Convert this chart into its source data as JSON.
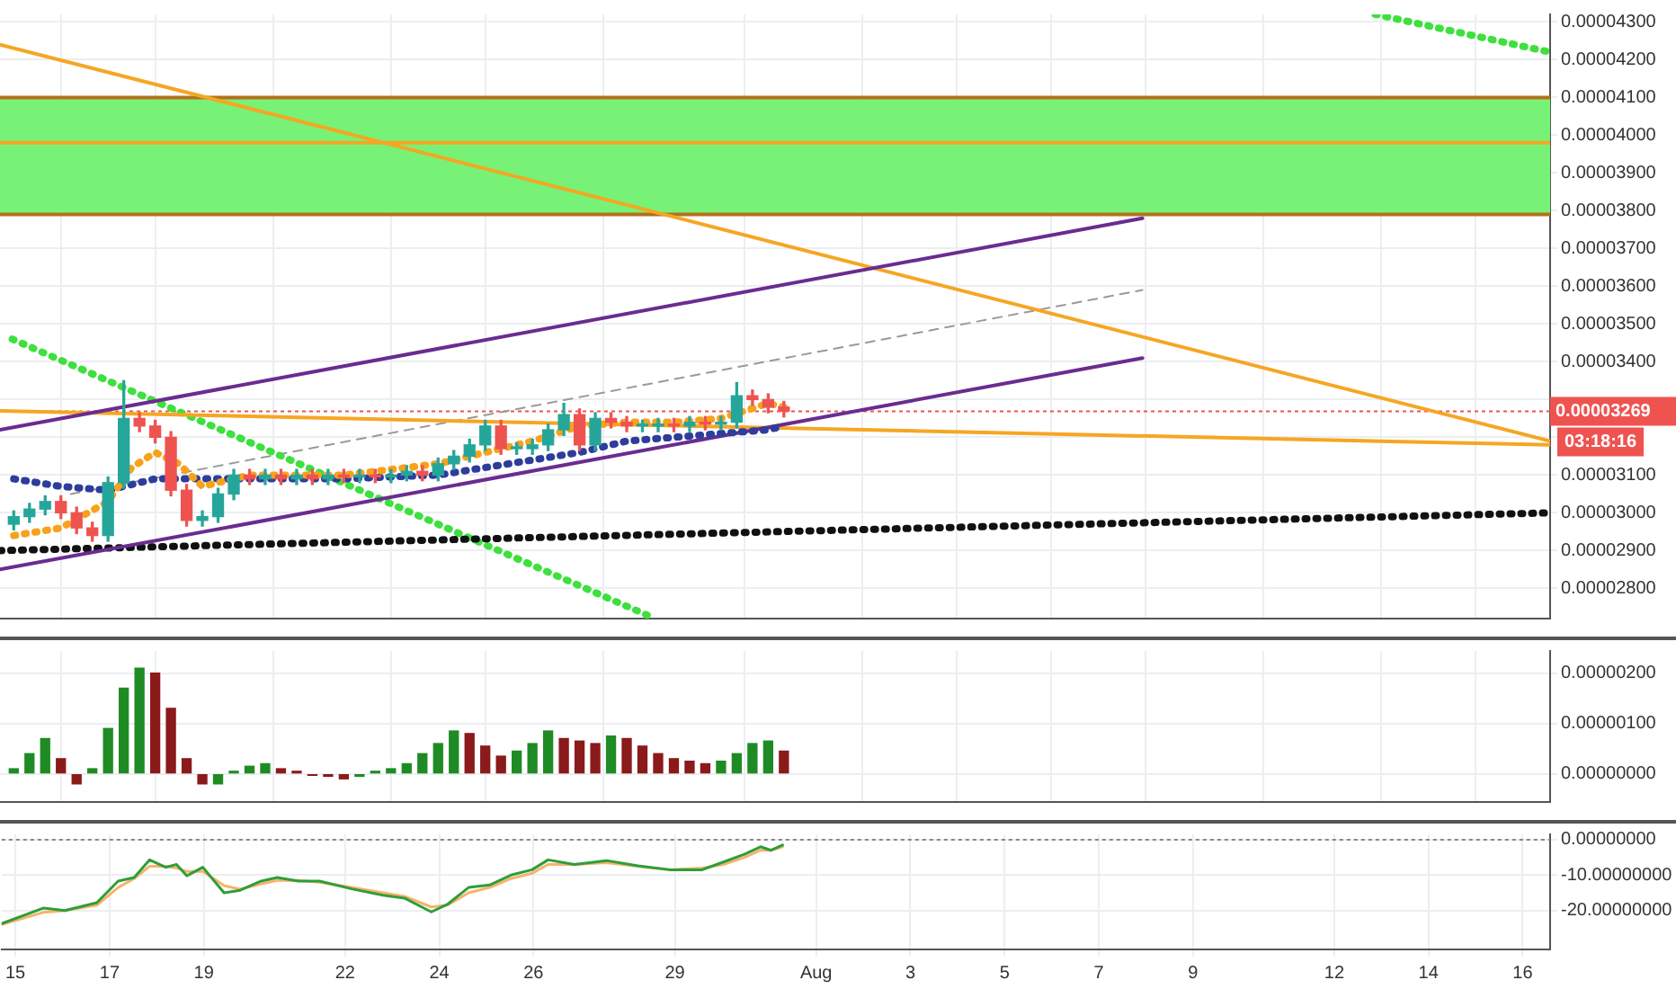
{
  "chart_data": [
    {
      "type": "candlestick",
      "x": [
        "--07-15T00:00",
        "--07-15T08:00",
        "--07-15T16:00",
        "--07-16T00:00",
        "--07-16T08:00",
        "--07-16T16:00",
        "--07-17T00:00",
        "--07-17T08:00",
        "--07-17T16:00",
        "--07-18T00:00",
        "--07-18T08:00",
        "--07-18T16:00",
        "--07-19T00:00",
        "--07-19T08:00",
        "--07-19T16:00",
        "--07-20T00:00",
        "--07-20T08:00",
        "--07-20T16:00",
        "--07-21T00:00",
        "--07-21T08:00",
        "--07-21T16:00",
        "--07-22T00:00",
        "--07-22T08:00",
        "--07-22T16:00",
        "--07-23T00:00",
        "--07-23T08:00",
        "--07-23T16:00",
        "--07-24T00:00",
        "--07-24T08:00",
        "--07-24T16:00",
        "--07-25T00:00",
        "--07-25T08:00",
        "--07-25T16:00",
        "--07-26T00:00",
        "--07-26T08:00",
        "--07-26T16:00",
        "--07-27T00:00",
        "--07-27T08:00",
        "--07-27T16:00",
        "--07-28T00:00",
        "--07-28T08:00",
        "--07-28T16:00",
        "--07-29T00:00",
        "--07-29T08:00",
        "--07-29T16:00",
        "--07-30T00:00",
        "--07-30T08:00",
        "--07-30T16:00",
        "--07-31T00:00",
        "--07-31T08:00"
      ],
      "ohlc": [
        [
          2.97e-05,
          3.005e-05,
          2.955e-05,
          2.99e-05
        ],
        [
          2.99e-05,
          3.025e-05,
          2.975e-05,
          3.01e-05
        ],
        [
          3.01e-05,
          3.045e-05,
          2.995e-05,
          3.03e-05
        ],
        [
          3.03e-05,
          3.045e-05,
          2.985e-05,
          3e-05
        ],
        [
          3e-05,
          3.015e-05,
          2.945e-05,
          2.96e-05
        ],
        [
          2.96e-05,
          2.975e-05,
          2.925e-05,
          2.94e-05
        ],
        [
          2.94e-05,
          3.095e-05,
          2.925e-05,
          3.08e-05
        ],
        [
          3.08e-05,
          3.35e-05,
          3.065e-05,
          3.25e-05
        ],
        [
          3.25e-05,
          3.265e-05,
          3.215e-05,
          3.23e-05
        ],
        [
          3.23e-05,
          3.245e-05,
          3.185e-05,
          3.2e-05
        ],
        [
          3.2e-05,
          3.215e-05,
          3.045e-05,
          3.06e-05
        ],
        [
          3.06e-05,
          3.075e-05,
          2.965e-05,
          2.98e-05
        ],
        [
          2.98e-05,
          3.005e-05,
          2.965e-05,
          2.99e-05
        ],
        [
          2.99e-05,
          3.065e-05,
          2.975e-05,
          3.05e-05
        ],
        [
          3.05e-05,
          3.115e-05,
          3.035e-05,
          3.1e-05
        ],
        [
          3.1e-05,
          3.115e-05,
          3.075e-05,
          3.09e-05
        ],
        [
          3.09e-05,
          3.115e-05,
          3.075e-05,
          3.1e-05
        ],
        [
          3.1e-05,
          3.115e-05,
          3.075e-05,
          3.09e-05
        ],
        [
          3.09e-05,
          3.115e-05,
          3.075e-05,
          3.1e-05
        ],
        [
          3.1e-05,
          3.115e-05,
          3.075e-05,
          3.09e-05
        ],
        [
          3.09e-05,
          3.115e-05,
          3.075e-05,
          3.1e-05
        ],
        [
          3.1e-05,
          3.115e-05,
          3.08e-05,
          3.095e-05
        ],
        [
          3.095e-05,
          3.115e-05,
          3.08e-05,
          3.1e-05
        ],
        [
          3.1e-05,
          3.115e-05,
          3.08e-05,
          3.095e-05
        ],
        [
          3.095e-05,
          3.115e-05,
          3.08e-05,
          3.1e-05
        ],
        [
          3.1e-05,
          3.125e-05,
          3.085e-05,
          3.11e-05
        ],
        [
          3.11e-05,
          3.125e-05,
          3.085e-05,
          3.1e-05
        ],
        [
          3.1e-05,
          3.145e-05,
          3.085e-05,
          3.13e-05
        ],
        [
          3.13e-05,
          3.165e-05,
          3.115e-05,
          3.15e-05
        ],
        [
          3.15e-05,
          3.195e-05,
          3.135e-05,
          3.18e-05
        ],
        [
          3.18e-05,
          3.245e-05,
          3.165e-05,
          3.23e-05
        ],
        [
          3.23e-05,
          3.245e-05,
          3.155e-05,
          3.17e-05
        ],
        [
          3.17e-05,
          3.185e-05,
          3.155e-05,
          3.17e-05
        ],
        [
          3.17e-05,
          3.195e-05,
          3.155e-05,
          3.18e-05
        ],
        [
          3.18e-05,
          3.235e-05,
          3.165e-05,
          3.22e-05
        ],
        [
          3.22e-05,
          3.29e-05,
          3.205e-05,
          3.26e-05
        ],
        [
          3.26e-05,
          3.275e-05,
          3.165e-05,
          3.18e-05
        ],
        [
          3.18e-05,
          3.265e-05,
          3.165e-05,
          3.25e-05
        ],
        [
          3.25e-05,
          3.265e-05,
          3.225e-05,
          3.24e-05
        ],
        [
          3.24e-05,
          3.255e-05,
          3.215e-05,
          3.23e-05
        ],
        [
          3.23e-05,
          3.245e-05,
          3.215e-05,
          3.23e-05
        ],
        [
          3.23e-05,
          3.25e-05,
          3.215e-05,
          3.235e-05
        ],
        [
          3.235e-05,
          3.25e-05,
          3.215e-05,
          3.23e-05
        ],
        [
          3.23e-05,
          3.255e-05,
          3.215e-05,
          3.24e-05
        ],
        [
          3.24e-05,
          3.255e-05,
          3.22e-05,
          3.235e-05
        ],
        [
          3.235e-05,
          3.255e-05,
          3.22e-05,
          3.24e-05
        ],
        [
          3.24e-05,
          3.345e-05,
          3.225e-05,
          3.31e-05
        ],
        [
          3.31e-05,
          3.325e-05,
          3.285e-05,
          3.3e-05
        ],
        [
          3.3e-05,
          3.315e-05,
          3.265e-05,
          3.28e-05
        ],
        [
          3.28e-05,
          3.295e-05,
          3.254e-05,
          3.269e-05
        ]
      ],
      "series": [
        {
          "type": "line",
          "color": "#f7a21b",
          "line_style": "dotted",
          "x": [
            "--07-15",
            "--07-16",
            "--07-17",
            "--07-17T12:00",
            "--07-18",
            "--07-18T12:00",
            "--07-19",
            "--07-20",
            "--07-22",
            "--07-24",
            "--07-25",
            "--07-26",
            "--07-27",
            "--07-28",
            "--07-29",
            "--07-30",
            "--07-31",
            "--07-31T08:00"
          ],
          "values": [
            2.94e-05,
            2.96e-05,
            3.03e-05,
            3.12e-05,
            3.16e-05,
            3.13e-05,
            3.07e-05,
            3.1e-05,
            3.1e-05,
            3.13e-05,
            3.16e-05,
            3.19e-05,
            3.23e-05,
            3.24e-05,
            3.24e-05,
            3.25e-05,
            3.29e-05,
            3.28e-05
          ]
        },
        {
          "type": "line",
          "color": "#2e3d9c",
          "line_style": "dotted",
          "x": [
            "--07-15",
            "--07-16",
            "--07-17",
            "--07-18",
            "--07-19",
            "--07-20",
            "--07-22",
            "--07-24",
            "--07-25",
            "--07-26",
            "--07-27",
            "--07-28",
            "--07-29",
            "--07-30",
            "--07-31",
            "--07-31T08:00"
          ],
          "values": [
            3.09e-05,
            3.07e-05,
            3.06e-05,
            3.09e-05,
            3.09e-05,
            3.09e-05,
            3.09e-05,
            3.1e-05,
            3.12e-05,
            3.14e-05,
            3.16e-05,
            3.19e-05,
            3.2e-05,
            3.21e-05,
            3.22e-05,
            3.23e-05
          ]
        },
        {
          "type": "line",
          "color": "#6a2c91",
          "line_style": "solid",
          "x": [
            "--07-14T17:00",
            "--08-07T22:30"
          ],
          "values": [
            3.22e-05,
            3.78e-05
          ]
        },
        {
          "type": "line",
          "color": "#6a2c91",
          "line_style": "solid",
          "x": [
            "--07-14T17:00",
            "--08-07T22:30"
          ],
          "values": [
            2.85e-05,
            3.41e-05
          ]
        },
        {
          "type": "line",
          "color": "#f5a623",
          "line_style": "solid",
          "x": [
            "--07-14T17:00",
            "--08-16T14:00"
          ],
          "values": [
            4.24e-05,
            3.19e-05
          ]
        },
        {
          "type": "line",
          "color": "#f5a623",
          "line_style": "solid",
          "x": [
            "--07-14T17:00",
            "--08-16T14:00"
          ],
          "values": [
            3.27e-05,
            3.18e-05
          ]
        },
        {
          "type": "line",
          "color": "#111111",
          "line_style": "dotted",
          "x": [
            "--07-14T17:00",
            "--08-16T14:00"
          ],
          "values": [
            2.9e-05,
            3e-05
          ]
        },
        {
          "type": "line",
          "color": "#3ee03e",
          "line_style": "dotted",
          "x": [
            "--07-14T23:15",
            "--07-28T14:25"
          ],
          "values": [
            3.46e-05,
            2.72e-05
          ]
        },
        {
          "type": "line",
          "color": "#3ee03e",
          "line_style": "dotted",
          "x": [
            "--08-12T21:00",
            "--08-16T14:00"
          ],
          "values": [
            4.32e-05,
            4.22e-05
          ]
        },
        {
          "type": "line",
          "color": "#9a9a9a",
          "line_style": "dashed",
          "x": [
            "--07-16T05:00",
            "--08-07T22:30"
          ],
          "values": [
            3.05e-05,
            3.59e-05
          ]
        }
      ],
      "bands": [
        {
          "axis": "y",
          "from": 3.79e-05,
          "to": 4.1e-05,
          "color": "#77f277"
        }
      ],
      "ref_lines": [
        {
          "axis": "y",
          "value": 4.1e-05,
          "color": "#b5701a",
          "line_style": "solid"
        },
        {
          "axis": "y",
          "value": 3.79e-05,
          "color": "#b5701a",
          "line_style": "solid"
        },
        {
          "axis": "y",
          "value": 3.98e-05,
          "color": "#f5a623",
          "line_style": "solid"
        },
        {
          "axis": "y",
          "value": 3.269e-05,
          "label": "0.00003269",
          "color": "#ef5350",
          "line_style": "dotted"
        }
      ],
      "annotations": [
        "03:18:16"
      ],
      "xlim": [
        "--07-14T17:00",
        "--08-16T14:00"
      ],
      "xticks": [
        {
          "value": "--07-15",
          "label": "15"
        },
        {
          "value": "--07-17",
          "label": "17"
        },
        {
          "value": "--07-19",
          "label": "19"
        },
        {
          "value": "--07-22",
          "label": "22"
        },
        {
          "value": "--07-24",
          "label": "24"
        },
        {
          "value": "--07-26",
          "label": "26"
        },
        {
          "value": "--07-29",
          "label": "29"
        },
        {
          "value": "--08-01",
          "label": "Aug"
        },
        {
          "value": "--08-03",
          "label": "3"
        },
        {
          "value": "--08-05",
          "label": "5"
        },
        {
          "value": "--08-07",
          "label": "7"
        },
        {
          "value": "--08-09",
          "label": "9"
        },
        {
          "value": "--08-12",
          "label": "12"
        },
        {
          "value": "--08-14",
          "label": "14"
        },
        {
          "value": "--08-16",
          "label": "16"
        }
      ],
      "ylim": [
        2.72e-05,
        4.32e-05
      ],
      "yticks": [
        {
          "value": 2.8e-05,
          "label": "0.00002800"
        },
        {
          "value": 2.9e-05,
          "label": "0.00002900"
        },
        {
          "value": 3e-05,
          "label": "0.00003000"
        },
        {
          "value": 3.1e-05,
          "label": "0.00003100"
        },
        {
          "value": 3.2e-05,
          "label": null
        },
        {
          "value": 3.3e-05,
          "label": null
        },
        {
          "value": 3.4e-05,
          "label": "0.00003400"
        },
        {
          "value": 3.5e-05,
          "label": "0.00003500"
        },
        {
          "value": 3.6e-05,
          "label": "0.00003600"
        },
        {
          "value": 3.7e-05,
          "label": "0.00003700"
        },
        {
          "value": 3.8e-05,
          "label": "0.00003800"
        },
        {
          "value": 3.9e-05,
          "label": "0.00003900"
        },
        {
          "value": 4e-05,
          "label": "0.00004000"
        },
        {
          "value": 4.1e-05,
          "label": "0.00004100"
        },
        {
          "value": 4.2e-05,
          "label": "0.00004200"
        },
        {
          "value": 4.3e-05,
          "label": "0.00004300"
        }
      ],
      "grid": true,
      "legend": false,
      "tick_labels": "y"
    },
    {
      "type": "bar",
      "x": [
        "--07-15T00:00",
        "--07-15T08:00",
        "--07-15T16:00",
        "--07-16T00:00",
        "--07-16T08:00",
        "--07-16T16:00",
        "--07-17T00:00",
        "--07-17T08:00",
        "--07-17T16:00",
        "--07-18T00:00",
        "--07-18T08:00",
        "--07-18T16:00",
        "--07-19T00:00",
        "--07-19T08:00",
        "--07-19T16:00",
        "--07-20T00:00",
        "--07-20T08:00",
        "--07-20T16:00",
        "--07-21T00:00",
        "--07-21T08:00",
        "--07-21T16:00",
        "--07-22T00:00",
        "--07-22T08:00",
        "--07-22T16:00",
        "--07-23T00:00",
        "--07-23T08:00",
        "--07-23T16:00",
        "--07-24T00:00",
        "--07-24T08:00",
        "--07-24T16:00",
        "--07-25T00:00",
        "--07-25T08:00",
        "--07-25T16:00",
        "--07-26T00:00",
        "--07-26T08:00",
        "--07-26T16:00",
        "--07-27T00:00",
        "--07-27T08:00",
        "--07-27T16:00",
        "--07-28T00:00",
        "--07-28T08:00",
        "--07-28T16:00",
        "--07-29T00:00",
        "--07-29T08:00",
        "--07-29T16:00",
        "--07-30T00:00",
        "--07-30T08:00",
        "--07-30T16:00",
        "--07-31T00:00",
        "--07-31T08:00"
      ],
      "values": [
        1e-07,
        4e-07,
        7e-07,
        3e-07,
        -2e-07,
        1e-07,
        9e-07,
        1.7e-06,
        2.1e-06,
        2e-06,
        1.3e-06,
        3e-07,
        -2e-07,
        -2e-07,
        5e-08,
        1.5e-07,
        2e-07,
        1e-07,
        5e-08,
        -3e-08,
        -5e-08,
        -1e-07,
        -5e-08,
        5e-08,
        1e-07,
        2e-07,
        4e-07,
        6e-07,
        8.5e-07,
        8e-07,
        5.5e-07,
        3.5e-07,
        4.5e-07,
        6e-07,
        8.5e-07,
        7e-07,
        6.5e-07,
        6e-07,
        7.5e-07,
        7e-07,
        5.5e-07,
        4e-07,
        3e-07,
        2.5e-07,
        2e-07,
        2.5e-07,
        4e-07,
        6e-07,
        6.5e-07,
        4.5e-07
      ],
      "colors": [
        "#1f8b24",
        "#1f8b24",
        "#1f8b24",
        "#8b1a1a",
        "#8b1a1a",
        "#1f8b24",
        "#1f8b24",
        "#1f8b24",
        "#1f8b24",
        "#8b1a1a",
        "#8b1a1a",
        "#8b1a1a",
        "#8b1a1a",
        "#1f8b24",
        "#1f8b24",
        "#1f8b24",
        "#1f8b24",
        "#8b1a1a",
        "#8b1a1a",
        "#8b1a1a",
        "#8b1a1a",
        "#8b1a1a",
        "#1f8b24",
        "#1f8b24",
        "#1f8b24",
        "#1f8b24",
        "#1f8b24",
        "#1f8b24",
        "#1f8b24",
        "#8b1a1a",
        "#8b1a1a",
        "#8b1a1a",
        "#1f8b24",
        "#1f8b24",
        "#1f8b24",
        "#8b1a1a",
        "#8b1a1a",
        "#8b1a1a",
        "#1f8b24",
        "#8b1a1a",
        "#8b1a1a",
        "#8b1a1a",
        "#8b1a1a",
        "#8b1a1a",
        "#8b1a1a",
        "#1f8b24",
        "#1f8b24",
        "#1f8b24",
        "#1f8b24",
        "#8b1a1a"
      ],
      "xlim": [
        "--07-14T17:00",
        "--08-16T14:00"
      ],
      "xticks": [
        {
          "value": "--07-15",
          "label": "15"
        },
        {
          "value": "--07-17",
          "label": "17"
        },
        {
          "value": "--07-19",
          "label": "19"
        },
        {
          "value": "--07-22",
          "label": "22"
        },
        {
          "value": "--07-24",
          "label": "24"
        },
        {
          "value": "--07-26",
          "label": "26"
        },
        {
          "value": "--07-29",
          "label": "29"
        },
        {
          "value": "--08-01",
          "label": "Aug"
        },
        {
          "value": "--08-03",
          "label": "3"
        },
        {
          "value": "--08-05",
          "label": "5"
        },
        {
          "value": "--08-07",
          "label": "7"
        },
        {
          "value": "--08-09",
          "label": "9"
        },
        {
          "value": "--08-12",
          "label": "12"
        },
        {
          "value": "--08-14",
          "label": "14"
        },
        {
          "value": "--08-16",
          "label": "16"
        }
      ],
      "ylim": [
        -5.6e-07,
        2.44e-06
      ],
      "yticks": [
        {
          "value": 0,
          "label": "0.00000000"
        },
        {
          "value": 1e-06,
          "label": "0.00000100"
        },
        {
          "value": 2e-06,
          "label": "0.00000200"
        }
      ],
      "grid": true,
      "legend": false,
      "tick_labels": "y"
    },
    {
      "type": "line",
      "series": [
        {
          "color": "#2e9e3a",
          "x": [
            "--07-14T17:00",
            "--07-15T14:25",
            "--07-16T01:10",
            "--07-16T17:30",
            "--07-17T04:20",
            "--07-17T12:30",
            "--07-17T20:25",
            "--07-18T04:35",
            "--07-18T10:05",
            "--07-18T15:20",
            "--07-18T23:30",
            "--07-19T10:20",
            "--07-19T18:30",
            "--07-20T05:15",
            "--07-20T13:25",
            "--07-21T00:15",
            "--07-21T11:00",
            "--07-22T03:20",
            "--07-22T19:25",
            "--07-23T06:15",
            "--07-23T19:55",
            "--07-24T04:05",
            "--07-24T14:55",
            "--07-25T01:40",
            "--07-25T12:30",
            "--07-25T23:15",
            "--07-26T07:25",
            "--07-26T20:50",
            "--07-27T13:10",
            "--07-28T05:15",
            "--07-28T21:35",
            "--07-29T13:55",
            "--07-30T00:45",
            "--07-30T11:30",
            "--07-30T19:40",
            "--07-31T01:00",
            "--07-31T06:55"
          ],
          "values": [
            -23.7,
            -19.3,
            -20,
            -17.8,
            -11.7,
            -10.7,
            -5.7,
            -7.8,
            -7,
            -10.2,
            -7.8,
            -15,
            -14.3,
            -11.7,
            -10.7,
            -11.7,
            -11.7,
            -13.9,
            -15.7,
            -16.5,
            -20.4,
            -18.3,
            -13.5,
            -12.8,
            -10,
            -8.5,
            -5.7,
            -7,
            -5.9,
            -7.4,
            -8.5,
            -8.5,
            -6.3,
            -4.1,
            -2,
            -3,
            -1.5
          ]
        },
        {
          "color": "#f7b36b",
          "x": [
            "--07-14T17:00",
            "--07-15T14:25",
            "--07-16T01:10",
            "--07-16T17:30",
            "--07-17T04:20",
            "--07-17T12:30",
            "--07-17T20:25",
            "--07-18T04:35",
            "--07-18T10:05",
            "--07-18T15:20",
            "--07-18T23:30",
            "--07-19T10:20",
            "--07-19T18:30",
            "--07-20T05:15",
            "--07-20T13:25",
            "--07-21T00:15",
            "--07-21T11:00",
            "--07-22T03:20",
            "--07-22T19:25",
            "--07-23T06:15",
            "--07-23T19:55",
            "--07-24T04:05",
            "--07-24T14:55",
            "--07-25T01:40",
            "--07-25T12:30",
            "--07-25T23:15",
            "--07-26T07:25",
            "--07-26T20:50",
            "--07-27T13:10",
            "--07-28T05:15",
            "--07-28T21:35",
            "--07-29T13:55",
            "--07-30T00:45",
            "--07-30T11:30",
            "--07-30T19:40",
            "--07-31T01:00",
            "--07-31T06:55"
          ],
          "values": [
            -24,
            -20.5,
            -20,
            -18.5,
            -13.5,
            -11,
            -7.5,
            -7.5,
            -8,
            -9,
            -9,
            -13,
            -14,
            -12.5,
            -11.5,
            -11.5,
            -12,
            -13.5,
            -15,
            -16,
            -19,
            -18.5,
            -15,
            -13.5,
            -11,
            -9.5,
            -7,
            -7,
            -6.5,
            -7.5,
            -8.5,
            -8,
            -7,
            -5,
            -3,
            -3,
            -2
          ]
        }
      ],
      "ref_lines": [
        {
          "axis": "y",
          "value": 0,
          "color": "#888888",
          "line_style": "dotted"
        }
      ],
      "xlim": [
        "--07-14T17:00",
        "--08-16T14:00"
      ],
      "xticks": [
        {
          "value": "--07-15",
          "label": "15"
        },
        {
          "value": "--07-17",
          "label": "17"
        },
        {
          "value": "--07-19",
          "label": "19"
        },
        {
          "value": "--07-22",
          "label": "22"
        },
        {
          "value": "--07-24",
          "label": "24"
        },
        {
          "value": "--07-26",
          "label": "26"
        },
        {
          "value": "--07-29",
          "label": "29"
        },
        {
          "value": "--08-01",
          "label": "Aug"
        },
        {
          "value": "--08-03",
          "label": "3"
        },
        {
          "value": "--08-05",
          "label": "5"
        },
        {
          "value": "--08-07",
          "label": "7"
        },
        {
          "value": "--08-09",
          "label": "9"
        },
        {
          "value": "--08-12",
          "label": "12"
        },
        {
          "value": "--08-14",
          "label": "14"
        },
        {
          "value": "--08-16",
          "label": "16"
        }
      ],
      "ylim": [
        -31,
        1.5
      ],
      "yticks": [
        {
          "value": 0,
          "label": "0.00000000"
        },
        {
          "value": -10,
          "label": "-10.00000000"
        },
        {
          "value": -20,
          "label": "-20.00000000"
        }
      ],
      "grid": true,
      "legend": false
    }
  ]
}
